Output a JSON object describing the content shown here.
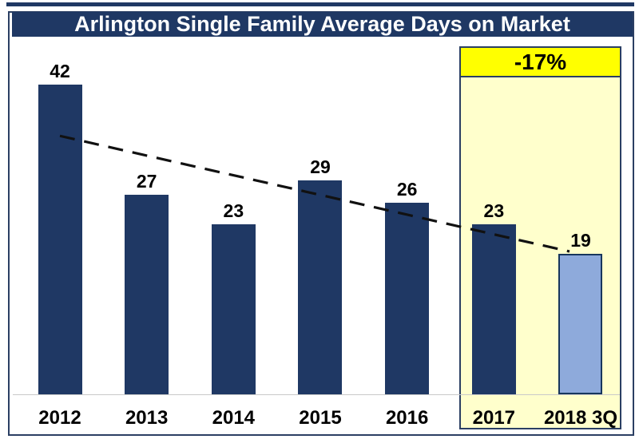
{
  "title": "Arlington Single Family Average Days on Market",
  "colors": {
    "navy": "#1F3864",
    "light_blue": "#8EAADB",
    "special_bar_border": "#17365D",
    "pale_yellow": "#FFFFCC",
    "bright_yellow": "#FFFF00",
    "frame_border": "#2B3F63",
    "title_text": "#FFFFFF",
    "label_text": "#000000",
    "trend_line": "#111111",
    "baseline_gray": "#C9C9C9"
  },
  "chart_data": {
    "type": "bar",
    "title": "Arlington Single Family Average Days on Market",
    "categories": [
      "2012",
      "2013",
      "2014",
      "2015",
      "2016",
      "2017",
      "2018 3Q"
    ],
    "values": [
      42,
      27,
      23,
      29,
      26,
      23,
      19
    ],
    "data_labels": [
      "42",
      "27",
      "23",
      "29",
      "26",
      "23",
      "19"
    ],
    "bar_color_default": "#1F3864",
    "special_bars": [
      {
        "category": "2018 3Q",
        "color": "#8EAADB",
        "border_color": "#17365D"
      }
    ],
    "highlight": {
      "label": "-17%",
      "categories": [
        "2017",
        "2018 3Q"
      ],
      "header_bg": "#FFFF00",
      "body_bg": "#FFFFCC"
    },
    "trendline": {
      "style": "dashed",
      "color": "#111111",
      "start_category": "2012",
      "start_value": 35,
      "end_category": "2018 3Q",
      "end_value": 19
    },
    "xlabel": "",
    "ylabel": "",
    "ylim": [
      0,
      47
    ],
    "y_axis_visible": false,
    "grid": false,
    "legend": false
  }
}
